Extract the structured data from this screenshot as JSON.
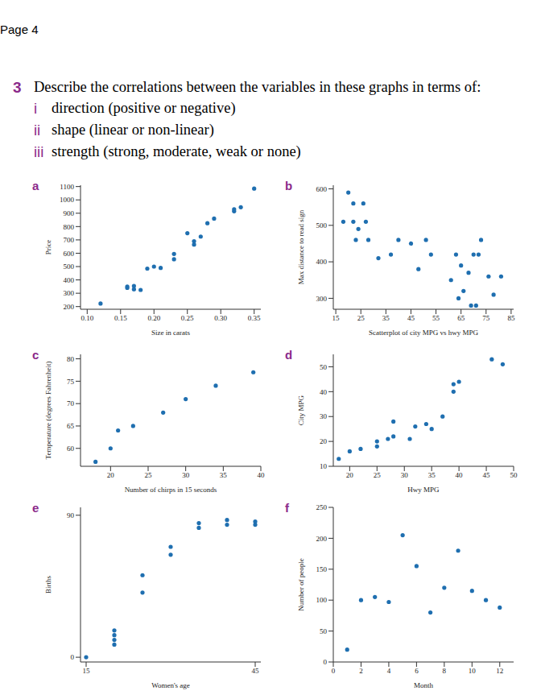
{
  "page": {
    "header": "Page 4",
    "number": "3",
    "question": "Describe the correlations between the variables in these graphs in terms of:",
    "items": [
      {
        "label": "i",
        "text": "direction (positive or negative)"
      },
      {
        "label": "ii",
        "text": "shape (linear or non-linear)"
      },
      {
        "label": "iii",
        "text": "strength (strong, moderate, weak or none)"
      }
    ]
  },
  "chart_data": [
    {
      "label": "a",
      "type": "scatter",
      "x_label": "Size in carats",
      "y_label": "Price",
      "color": "#1f6fb0",
      "marker": "circle",
      "x": [
        0.12,
        0.16,
        0.16,
        0.17,
        0.17,
        0.18,
        0.19,
        0.2,
        0.21,
        0.23,
        0.23,
        0.25,
        0.26,
        0.26,
        0.27,
        0.28,
        0.29,
        0.32,
        0.32,
        0.33,
        0.35
      ],
      "values": [
        223,
        340,
        350,
        330,
        355,
        325,
        485,
        500,
        490,
        555,
        595,
        750,
        690,
        665,
        725,
        825,
        860,
        915,
        930,
        945,
        1085
      ],
      "xlim": [
        0.09,
        0.36
      ],
      "ylim": [
        180,
        1110
      ],
      "xticks": [
        {
          "value": 0.1,
          "label": "0.10"
        },
        {
          "value": 0.15,
          "label": "0.15"
        },
        {
          "value": 0.2,
          "label": "0.20"
        },
        {
          "value": 0.25,
          "label": "0.25"
        },
        {
          "value": 0.3,
          "label": "0.30"
        },
        {
          "value": 0.35,
          "label": "0.35"
        }
      ],
      "yticks": [
        200,
        300,
        400,
        500,
        600,
        700,
        800,
        900,
        1000,
        1100
      ]
    },
    {
      "label": "b",
      "type": "scatter",
      "x_label": "Scatterplot of city MPG vs hwy MPG",
      "y_label": "Max distance to read sign",
      "color": "#1f6fb0",
      "marker": "circle",
      "x": [
        18,
        20,
        22,
        22,
        23,
        24,
        26,
        27,
        28,
        32,
        37,
        40,
        45,
        48,
        51,
        53,
        61,
        63,
        64,
        65,
        66,
        68,
        69,
        70,
        71,
        72,
        73,
        76,
        78,
        81
      ],
      "values": [
        510,
        590,
        560,
        510,
        460,
        490,
        560,
        510,
        460,
        410,
        420,
        460,
        450,
        380,
        460,
        420,
        350,
        420,
        300,
        390,
        320,
        370,
        280,
        420,
        280,
        420,
        460,
        360,
        310,
        360
      ],
      "xlim": [
        14,
        86
      ],
      "ylim": [
        270,
        610
      ],
      "xticks": [
        15,
        25,
        35,
        45,
        55,
        65,
        75,
        85
      ],
      "yticks": [
        300,
        400,
        500,
        600
      ]
    },
    {
      "label": "c",
      "type": "scatter",
      "x_label": "Number of chirps in 15 seconds",
      "y_label": "Temperature (degrees Fahrenheit)",
      "color": "#1f6fb0",
      "marker": "circle",
      "x": [
        18,
        20,
        21,
        23,
        27,
        30,
        34,
        39
      ],
      "values": [
        57,
        60,
        64,
        65,
        68,
        71,
        74,
        77
      ],
      "xlim": [
        16,
        40
      ],
      "ylim": [
        56,
        81
      ],
      "xticks": [
        20,
        25,
        30,
        35,
        40
      ],
      "yticks": [
        60,
        65,
        70,
        75,
        80
      ]
    },
    {
      "label": "d",
      "type": "scatter",
      "x_label": "Hwy MPG",
      "y_label": "City MPG",
      "color": "#1f6fb0",
      "marker": "circle",
      "x": [
        18,
        20,
        22,
        25,
        25,
        27,
        28,
        28,
        31,
        32,
        34,
        35,
        37,
        39,
        39,
        40,
        46,
        48
      ],
      "values": [
        13,
        16,
        17,
        18,
        20,
        21,
        22,
        28,
        21,
        26,
        27,
        25,
        30,
        40,
        43,
        44,
        53,
        51
      ],
      "xlim": [
        17,
        50
      ],
      "ylim": [
        10,
        55
      ],
      "xticks": [
        20,
        25,
        30,
        35,
        40,
        45,
        50
      ],
      "yticks": [
        10,
        20,
        30,
        40,
        50
      ]
    },
    {
      "label": "e",
      "type": "scatter",
      "x_label": "Women's age",
      "y_label": "Births",
      "color": "#1f6fb0",
      "marker": "circle",
      "x": [
        15,
        20,
        20,
        20,
        20,
        25,
        25,
        30,
        30,
        35,
        35,
        40,
        40,
        45,
        45
      ],
      "values": [
        0,
        8,
        11,
        14,
        17,
        41,
        52,
        65,
        70,
        82,
        85,
        84,
        87,
        84,
        86
      ],
      "xlim": [
        14,
        46
      ],
      "ylim": [
        -3,
        95
      ],
      "xticks": [
        15,
        45
      ],
      "yticks": [
        0,
        90
      ]
    },
    {
      "label": "f",
      "type": "scatter",
      "x_label": "Month",
      "y_label": "Number of people",
      "color": "#1f6fb0",
      "marker": "circle",
      "x": [
        1,
        2,
        3,
        4,
        5,
        6,
        7,
        8,
        9,
        10,
        11,
        12
      ],
      "values": [
        20,
        100,
        105,
        97,
        205,
        155,
        80,
        120,
        180,
        115,
        100,
        88
      ],
      "xlim": [
        0,
        13
      ],
      "ylim": [
        0,
        250
      ],
      "xticks": [
        0,
        2,
        4,
        6,
        8,
        10,
        12
      ],
      "yticks": [
        0,
        50,
        100,
        150,
        200,
        250
      ]
    }
  ]
}
